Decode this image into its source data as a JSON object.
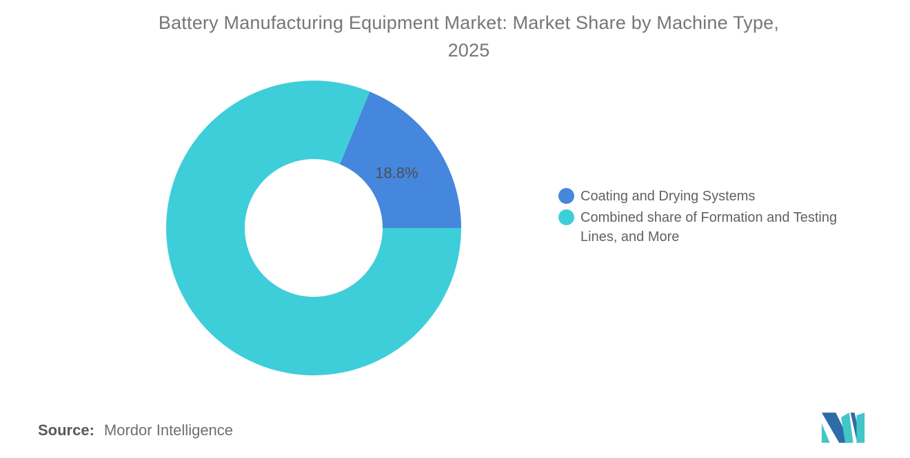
{
  "header": {
    "title_line1": "Battery Manufacturing Equipment Market: Market Share by Machine Type,",
    "title_line2": "2025"
  },
  "chart_data": {
    "type": "pie",
    "subtype": "donut",
    "title": "Battery Manufacturing Equipment Market: Market Share by Machine Type, 2025",
    "rotation_deg": 22.32,
    "legend_position": "right",
    "value_format": "percent",
    "label_color": "#4c4f54",
    "slices": [
      {
        "name": "Coating and Drying Systems",
        "value": 18.8,
        "color": "#4587dc",
        "label": "18.8%"
      },
      {
        "name": "Combined share of Formation and Testing Lines, and More",
        "value": 81.2,
        "color": "#3eced9",
        "label": ""
      }
    ]
  },
  "source": {
    "label": "Source:",
    "value": "Mordor Intelligence"
  },
  "logo": {
    "name": "mordor-intelligence-logo",
    "colors": {
      "blue": "#2e6ca6",
      "teal": "#42c6c7"
    }
  }
}
